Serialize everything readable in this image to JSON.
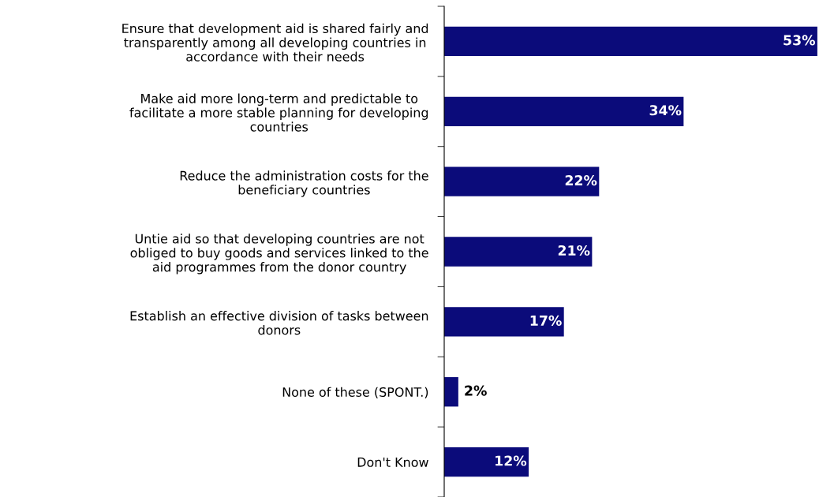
{
  "chart_data": {
    "type": "bar",
    "orientation": "horizontal",
    "categories": [
      "Ensure that development aid is shared fairly and transparently among all developing countries in accordance with their needs",
      "Make aid more long-term and predictable to facilitate a more stable planning for developing countries",
      "Reduce the administration costs for the beneficiary countries",
      "Untie aid so that developing countries are not obliged to buy goods and services linked to the aid programmes from the donor country",
      "Establish an effective division of tasks between donors",
      "None of these (SPONT.)",
      "Don't Know"
    ],
    "values": [
      53,
      34,
      22,
      21,
      17,
      2,
      12
    ],
    "color": "#0b0b7a",
    "value_labels": [
      "53%",
      "34%",
      "22%",
      "21%",
      "17%",
      "2%",
      "12%"
    ],
    "grid": false,
    "legend": false
  }
}
